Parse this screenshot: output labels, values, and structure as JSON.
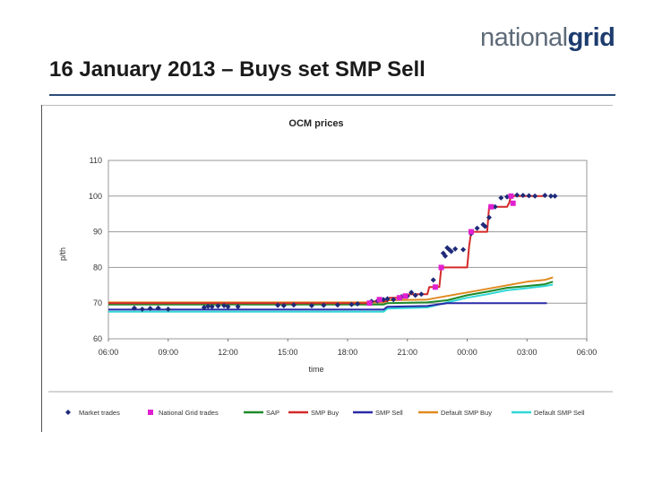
{
  "header": {
    "logo_text_a": "national",
    "logo_text_b": "grid",
    "title": "16 January 2013 – Buys set SMP Sell"
  },
  "chart_data": {
    "type": "line",
    "title": "OCM prices",
    "xlabel": "time",
    "ylabel": "p/th",
    "ylim": [
      60,
      110
    ],
    "yticks": [
      60,
      70,
      80,
      90,
      100,
      110
    ],
    "xlim": [
      6,
      30
    ],
    "xticks": [
      "06:00",
      "09:00",
      "12:00",
      "15:00",
      "18:00",
      "21:00",
      "00:00",
      "03:00",
      "06:00"
    ],
    "grid": true,
    "legend_position": "bottom",
    "colors": {
      "market": "#1f2a78",
      "ng": "#e020d0",
      "sap": "#1e8a2a",
      "smp_buy": "#d42a2a",
      "smp_sell": "#2a2aa8",
      "def_buy": "#e08a20",
      "def_sell": "#30d8d8"
    },
    "series": [
      {
        "name": "SAP",
        "key": "sap",
        "points": [
          [
            6,
            69.6
          ],
          [
            19.8,
            69.6
          ],
          [
            20.0,
            70.0
          ],
          [
            22.0,
            70.2
          ],
          [
            23.0,
            70.8
          ],
          [
            24.0,
            72.2
          ],
          [
            25.0,
            73.2
          ],
          [
            26.0,
            74.3
          ],
          [
            27.0,
            74.8
          ],
          [
            27.9,
            75.3
          ],
          [
            28.3,
            76.0
          ]
        ]
      },
      {
        "name": "SMP Buy",
        "key": "smp_buy",
        "points": [
          [
            6,
            70.0
          ],
          [
            19.0,
            70.0
          ],
          [
            19.2,
            70.5
          ],
          [
            20.0,
            70.5
          ],
          [
            20.1,
            71.5
          ],
          [
            21.0,
            71.5
          ],
          [
            21.1,
            72.5
          ],
          [
            22.0,
            72.5
          ],
          [
            22.1,
            74.5
          ],
          [
            22.6,
            74.5
          ],
          [
            22.7,
            80.0
          ],
          [
            24.0,
            80.0
          ],
          [
            24.1,
            86.0
          ],
          [
            24.2,
            90.0
          ],
          [
            25.0,
            90.0
          ],
          [
            25.1,
            97.0
          ],
          [
            26.0,
            97.0
          ],
          [
            26.1,
            98.0
          ],
          [
            26.2,
            100.0
          ],
          [
            28.0,
            100.0
          ]
        ]
      },
      {
        "name": "SMP Sell",
        "key": "smp_sell",
        "points": [
          [
            6,
            68.2
          ],
          [
            19.8,
            68.2
          ],
          [
            20.0,
            69.0
          ],
          [
            22.0,
            69.2
          ],
          [
            23.0,
            70.0
          ],
          [
            28.0,
            70.0
          ]
        ]
      },
      {
        "name": "Default SMP Buy",
        "key": "def_buy",
        "points": [
          [
            6,
            70.2
          ],
          [
            19.8,
            70.2
          ],
          [
            20.0,
            70.8
          ],
          [
            22.0,
            71.0
          ],
          [
            23.0,
            72.0
          ],
          [
            24.0,
            73.0
          ],
          [
            25.0,
            74.0
          ],
          [
            26.0,
            75.0
          ],
          [
            27.0,
            76.0
          ],
          [
            27.9,
            76.5
          ],
          [
            28.3,
            77.2
          ]
        ]
      },
      {
        "name": "Default SMP Sell",
        "key": "def_sell",
        "points": [
          [
            6,
            67.6
          ],
          [
            19.8,
            67.6
          ],
          [
            20.0,
            68.5
          ],
          [
            22.0,
            68.8
          ],
          [
            23.0,
            70.2
          ],
          [
            24.0,
            71.5
          ],
          [
            25.0,
            72.5
          ],
          [
            26.0,
            73.6
          ],
          [
            27.0,
            74.2
          ],
          [
            27.9,
            74.8
          ],
          [
            28.3,
            75.2
          ]
        ]
      }
    ],
    "markers": [
      {
        "name": "Market trades",
        "key": "market",
        "shape": "diamond",
        "points": [
          [
            7.3,
            68.6
          ],
          [
            7.7,
            68.3
          ],
          [
            8.1,
            68.5
          ],
          [
            8.5,
            68.6
          ],
          [
            9.0,
            68.3
          ],
          [
            10.8,
            68.8
          ],
          [
            11.0,
            69.1
          ],
          [
            11.2,
            69.0
          ],
          [
            11.5,
            69.2
          ],
          [
            11.8,
            69.3
          ],
          [
            12.0,
            69.0
          ],
          [
            12.5,
            69.0
          ],
          [
            14.5,
            69.4
          ],
          [
            14.8,
            69.3
          ],
          [
            15.3,
            69.5
          ],
          [
            16.2,
            69.3
          ],
          [
            16.8,
            69.4
          ],
          [
            17.5,
            69.5
          ],
          [
            18.2,
            69.6
          ],
          [
            18.5,
            69.8
          ],
          [
            19.2,
            70.5
          ],
          [
            19.5,
            70.6
          ],
          [
            19.8,
            71.0
          ],
          [
            20.0,
            71.2
          ],
          [
            20.3,
            71.0
          ],
          [
            20.7,
            71.8
          ],
          [
            21.0,
            72.0
          ],
          [
            21.2,
            73.0
          ],
          [
            21.4,
            72.2
          ],
          [
            21.7,
            72.5
          ],
          [
            22.3,
            76.5
          ],
          [
            22.8,
            84.0
          ],
          [
            22.9,
            83.2
          ],
          [
            23.0,
            85.5
          ],
          [
            23.1,
            85.0
          ],
          [
            23.2,
            84.5
          ],
          [
            23.4,
            85.2
          ],
          [
            23.8,
            85.0
          ],
          [
            24.2,
            89.5
          ],
          [
            24.5,
            91.0
          ],
          [
            24.8,
            92.0
          ],
          [
            24.9,
            91.5
          ],
          [
            25.1,
            94.0
          ],
          [
            25.4,
            97.0
          ],
          [
            25.7,
            99.5
          ],
          [
            26.0,
            99.8
          ],
          [
            26.2,
            100.0
          ],
          [
            26.5,
            100.3
          ],
          [
            26.8,
            100.2
          ],
          [
            27.1,
            100.1
          ],
          [
            27.4,
            100.0
          ],
          [
            27.9,
            100.2
          ],
          [
            28.2,
            100.0
          ],
          [
            28.4,
            100.0
          ]
        ]
      },
      {
        "name": "National Grid trades",
        "key": "ng",
        "shape": "square",
        "points": [
          [
            19.1,
            70.0
          ],
          [
            19.6,
            71.0
          ],
          [
            20.6,
            71.5
          ],
          [
            20.9,
            72.0
          ],
          [
            22.4,
            74.5
          ],
          [
            22.7,
            80.0
          ],
          [
            24.2,
            90.0
          ],
          [
            25.2,
            97.0
          ],
          [
            26.2,
            100.0
          ],
          [
            26.3,
            98.0
          ]
        ]
      }
    ]
  }
}
